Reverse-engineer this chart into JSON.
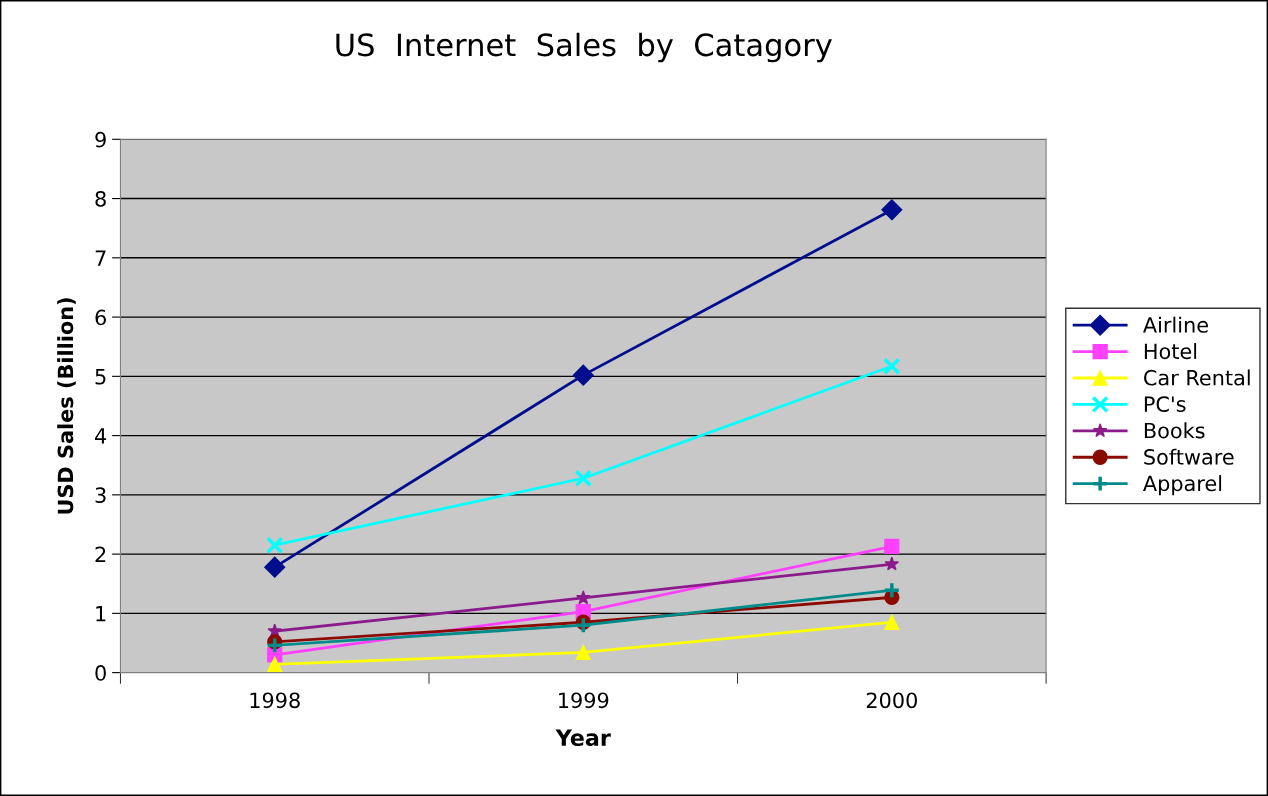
{
  "chart_data": {
    "type": "line",
    "title": "US  Internet  Sales  by  Catagory",
    "xlabel": "Year",
    "ylabel": "USD Sales (Billion)",
    "categories": [
      "1998",
      "1999",
      "2000"
    ],
    "series": [
      {
        "name": "Airline",
        "color": "#000e8e",
        "marker": "diamond",
        "values": [
          1.78,
          5.02,
          7.81
        ]
      },
      {
        "name": "Hotel",
        "color": "#ff40ff",
        "marker": "square",
        "values": [
          0.3,
          1.03,
          2.13
        ]
      },
      {
        "name": "Car Rental",
        "color": "#ffff00",
        "marker": "triangle",
        "values": [
          0.14,
          0.34,
          0.85
        ]
      },
      {
        "name": "PC's",
        "color": "#00ffff",
        "marker": "cross",
        "values": [
          2.15,
          3.28,
          5.17
        ]
      },
      {
        "name": "Books",
        "color": "#8b1a8b",
        "marker": "star",
        "values": [
          0.7,
          1.26,
          1.83
        ]
      },
      {
        "name": "Software",
        "color": "#8b0a00",
        "marker": "circle",
        "values": [
          0.52,
          0.85,
          1.27
        ]
      },
      {
        "name": "Apparel",
        "color": "#008b8b",
        "marker": "plus",
        "values": [
          0.46,
          0.8,
          1.39
        ]
      }
    ],
    "ylim": [
      0,
      9
    ],
    "yticks": [
      0,
      1,
      2,
      3,
      4,
      5,
      6,
      7,
      8,
      9
    ],
    "grid": "y",
    "legend": "right"
  }
}
